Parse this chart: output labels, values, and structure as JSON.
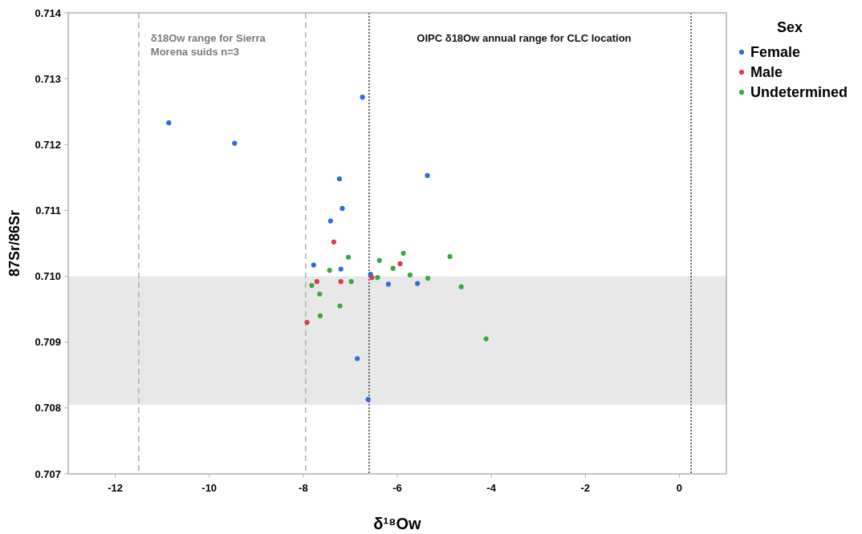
{
  "chart_data": {
    "type": "scatter",
    "xlabel": "δ¹⁸Ow",
    "ylabel": "87Sr/86Sr",
    "legend_title": "Sex",
    "legend": "top right",
    "marker": "circle",
    "grid": false,
    "xlim": [
      -13,
      1
    ],
    "xticks": [
      -12,
      -10,
      -8,
      -6,
      -4,
      -2,
      0
    ],
    "ylim": [
      0.707,
      0.714
    ],
    "yticks": [
      {
        "value": 0.707,
        "label": "0.707"
      },
      {
        "value": 0.708,
        "label": "0.708"
      },
      {
        "value": 0.709,
        "label": "0.709"
      },
      {
        "value": 0.71,
        "label": "0.710"
      },
      {
        "value": 0.711,
        "label": "0.711"
      },
      {
        "value": 0.712,
        "label": "0.712"
      },
      {
        "value": 0.713,
        "label": "0.713"
      },
      {
        "value": 0.714,
        "label": "0.714"
      }
    ],
    "annotations": [
      "δ18Ow range for Sierra Morena suids n=3",
      "OIPC δ18Ow annual range for CLC location"
    ],
    "ref_lines": [
      {
        "axis": "x",
        "value": -11.5,
        "color": "#b4b4b4",
        "line_style": "dashed"
      },
      {
        "axis": "x",
        "value": -7.95,
        "color": "#b4b4b4",
        "line_style": "dashed"
      },
      {
        "axis": "x",
        "value": -6.6,
        "color": "#444444",
        "line_style": "dotted"
      },
      {
        "axis": "x",
        "value": 0.25,
        "color": "#444444",
        "line_style": "dotted"
      }
    ],
    "bands": [
      {
        "axis": "y",
        "from": 0.70805,
        "to": 0.71,
        "color": "#e8e8e8"
      }
    ],
    "series": [
      {
        "name": "Female",
        "color": "#2f6be0",
        "x": [
          -10.86,
          -9.46,
          -6.74,
          -7.23,
          -5.36,
          -7.17,
          -7.42,
          -7.78,
          -7.2,
          -6.57,
          -6.19,
          -5.57,
          -6.85,
          -6.62
        ],
        "values": [
          0.71233,
          0.71202,
          0.71272,
          0.71148,
          0.71153,
          0.71103,
          0.71084,
          0.71017,
          0.71011,
          0.71003,
          0.70988,
          0.70989,
          0.70875,
          0.70813
        ]
      },
      {
        "name": "Male",
        "color": "#db3a4c",
        "x": [
          -7.35,
          -5.94,
          -7.71,
          -7.2,
          -6.54,
          -7.92
        ],
        "values": [
          0.71052,
          0.71019,
          0.70992,
          0.70992,
          0.70998,
          0.7093
        ]
      },
      {
        "name": "Undetermined",
        "color": "#36ab3c",
        "x": [
          -7.04,
          -7.44,
          -7.82,
          -6.98,
          -7.65,
          -7.22,
          -7.64,
          -6.42,
          -6.38,
          -6.09,
          -5.87,
          -5.73,
          -5.35,
          -4.88,
          -4.64,
          -4.11
        ],
        "values": [
          0.71029,
          0.71009,
          0.70986,
          0.70992,
          0.70973,
          0.70955,
          0.7094,
          0.70998,
          0.71024,
          0.71012,
          0.71035,
          0.71002,
          0.70997,
          0.7103,
          0.70984,
          0.70905
        ]
      }
    ]
  }
}
